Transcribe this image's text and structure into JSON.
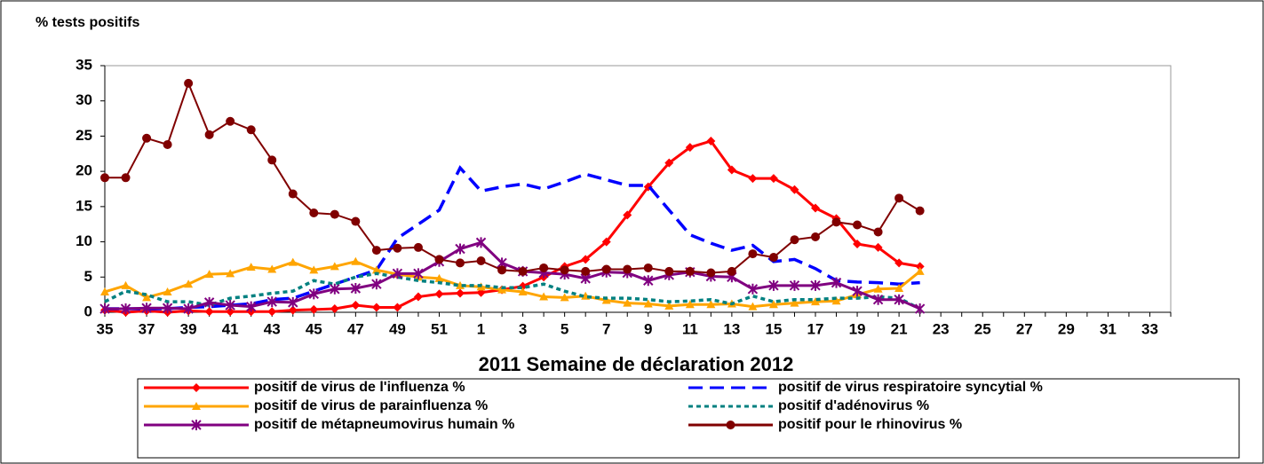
{
  "chart_data": {
    "type": "line",
    "y_label": "% tests positifs",
    "x_label": "2011  Semaine de déclaration   2012",
    "categories": [
      "35",
      null,
      "37",
      null,
      "39",
      null,
      "41",
      null,
      "43",
      null,
      "45",
      null,
      "47",
      null,
      "49",
      null,
      "51",
      null,
      "1",
      null,
      "3",
      null,
      "5",
      null,
      "7",
      null,
      "9",
      null,
      "11",
      null,
      "13",
      null,
      "15",
      null,
      "17",
      null,
      "19",
      null,
      "21",
      null,
      "23",
      null,
      "25",
      null,
      "27",
      null,
      "29",
      null,
      "31",
      null,
      "33",
      null
    ],
    "ylim": [
      0,
      35
    ],
    "yticks": [
      0,
      5,
      10,
      15,
      20,
      25,
      30,
      35
    ],
    "series": [
      {
        "name": "positif de virus de l'influenza %",
        "color": "#ff0000",
        "marker": "diamond",
        "dash": "solid",
        "values": [
          0.3,
          0,
          0.2,
          0,
          0.2,
          0.1,
          0.1,
          0.1,
          0.1,
          0.3,
          0.4,
          0.5,
          1,
          0.7,
          0.7,
          2.2,
          2.6,
          2.7,
          2.8,
          3.2,
          3.7,
          5,
          6.5,
          7.5,
          10,
          13.8,
          17.8,
          21.2,
          23.4,
          24.3,
          20.2,
          19,
          19,
          17.4,
          14.8,
          13.3,
          9.7,
          9.2,
          7,
          6.5,
          null,
          null,
          null,
          null,
          null,
          null,
          null,
          null,
          null,
          null,
          null,
          null
        ]
      },
      {
        "name": "positif de virus respiratoire syncytial %",
        "color": "#0000ff",
        "marker": "none",
        "dash": "dashed",
        "values": [
          0.5,
          0.5,
          0.5,
          0.5,
          0.7,
          0.8,
          1,
          1.2,
          1.8,
          2,
          3,
          4,
          5,
          6,
          10.5,
          12.5,
          14.5,
          20.5,
          17.2,
          17.8,
          18.2,
          17.5,
          18.5,
          19.6,
          18.8,
          18,
          18,
          14.5,
          11,
          9.8,
          8.8,
          9.5,
          7.2,
          7.5,
          6.2,
          4.5,
          4.3,
          4.2,
          4,
          4.2,
          null,
          null,
          null,
          null,
          null,
          null,
          null,
          null,
          null,
          null,
          null,
          null
        ]
      },
      {
        "name": "positif de virus de parainfluenza %",
        "color": "#ffa500",
        "marker": "triangle",
        "dash": "solid",
        "values": [
          2.9,
          3.8,
          2.1,
          2.9,
          4,
          5.4,
          5.5,
          6.4,
          6.1,
          7.1,
          6,
          6.5,
          7.2,
          6,
          5.4,
          5,
          4.8,
          3.8,
          3.6,
          3.2,
          2.9,
          2.2,
          2.1,
          2.3,
          1.7,
          1.3,
          1.2,
          0.9,
          1.1,
          1.1,
          1.2,
          0.8,
          1.1,
          1.3,
          1.5,
          1.6,
          2.5,
          3.3,
          3.4,
          5.8,
          null,
          null,
          null,
          null,
          null,
          null,
          null,
          null,
          null,
          null,
          null,
          null
        ]
      },
      {
        "name": "positif d'adénovirus %",
        "color": "#008080",
        "marker": "none",
        "dash": "dotted",
        "values": [
          1.5,
          3,
          2.5,
          1.5,
          1.5,
          1,
          2,
          2.3,
          2.7,
          3,
          4.5,
          4,
          5,
          5.5,
          5,
          4.5,
          4.2,
          3.8,
          3.8,
          3.5,
          3.5,
          4,
          3,
          2.2,
          2,
          2,
          1.8,
          1.5,
          1.6,
          1.8,
          1.2,
          2.3,
          1.5,
          1.8,
          1.8,
          2,
          2,
          2.2,
          2,
          0.5,
          null,
          null,
          null,
          null,
          null,
          null,
          null,
          null,
          null,
          null,
          null,
          null
        ]
      },
      {
        "name": "positif de métapneumovirus humain %",
        "color": "#800080",
        "marker": "star",
        "dash": "solid",
        "values": [
          0.5,
          0.5,
          0.6,
          0.6,
          0.5,
          1.4,
          1,
          0.8,
          1.5,
          1.4,
          2.6,
          3.3,
          3.4,
          4,
          5.5,
          5.5,
          7.2,
          9,
          9.9,
          7,
          5.8,
          5.6,
          5.4,
          4.8,
          5.7,
          5.6,
          4.5,
          5.3,
          5.7,
          5.1,
          5,
          3.3,
          3.8,
          3.8,
          3.8,
          4.2,
          3,
          1.8,
          1.8,
          0.5,
          null,
          null,
          null,
          null,
          null,
          null,
          null,
          null,
          null,
          null,
          null,
          null
        ]
      },
      {
        "name": "positif pour le rhinovirus %",
        "color": "#800000",
        "marker": "circle",
        "dash": "solid",
        "values": [
          19.1,
          19.1,
          24.7,
          23.8,
          32.5,
          25.2,
          27.1,
          25.9,
          21.6,
          16.8,
          14.1,
          13.9,
          12.9,
          8.8,
          9.1,
          9.2,
          7.5,
          7,
          7.3,
          6,
          5.8,
          6.3,
          6,
          5.8,
          6.1,
          6.1,
          6.3,
          5.8,
          5.8,
          5.6,
          5.8,
          8.3,
          7.8,
          10.3,
          10.7,
          12.8,
          12.4,
          11.4,
          16.2,
          14.4,
          null,
          null,
          null,
          null,
          null,
          null,
          null,
          null,
          null,
          null,
          null,
          null
        ]
      }
    ]
  }
}
